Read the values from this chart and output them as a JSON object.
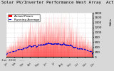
{
  "title": "Solar PV/Inverter Performance West Array  Actual & Running Average Power Output",
  "title_line2": "Jan 2010  ---",
  "title_fontsize": 4.2,
  "bg_color": "#d8d8d8",
  "plot_bg_color": "#ffffff",
  "bar_color": "#ff0000",
  "line_color": "#0000cc",
  "grid_color": "#bbbbbb",
  "ylim": [
    0,
    1800
  ],
  "yticks": [
    0,
    200,
    400,
    600,
    800,
    1000,
    1200,
    1400,
    1600,
    1800
  ],
  "tick_fontsize": 3.0,
  "legend_labels": [
    "Actual Power",
    "Running Average"
  ],
  "legend_fontsize": 3.0,
  "num_days": 120,
  "points_per_day": 24
}
